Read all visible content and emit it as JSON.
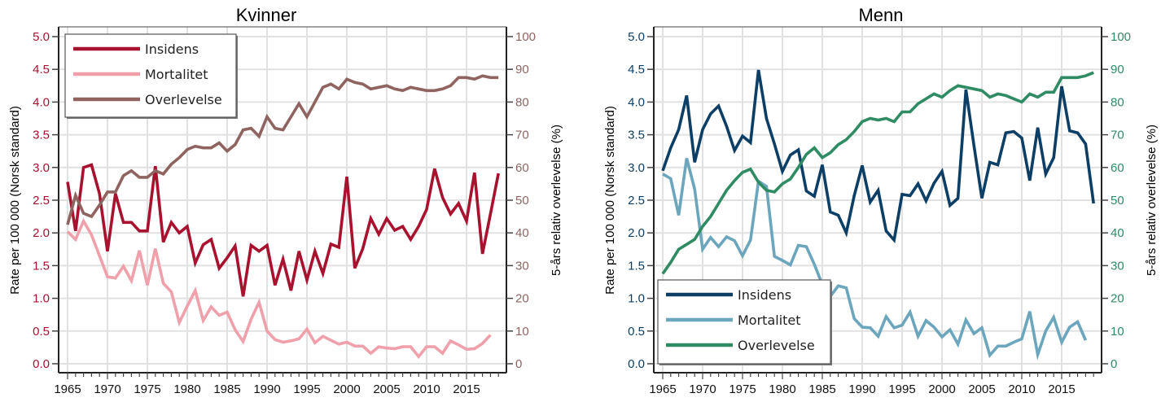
{
  "chart_data": [
    {
      "type": "line",
      "title": "Kvinner",
      "xlabel": "",
      "ylabel": "Rate per 100 000 (Norsk standard)",
      "y2label": "5-års relativ overlevelse (%)",
      "xlim": [
        1965,
        2019
      ],
      "ylim": [
        0,
        5
      ],
      "y2lim": [
        0,
        100
      ],
      "xticks": [
        "1965",
        "1970",
        "1975",
        "1980",
        "1985",
        "1990",
        "1995",
        "2000",
        "2005",
        "2010",
        "2015"
      ],
      "yticks": [
        "0.0",
        "0.5",
        "1.0",
        "1.5",
        "2.0",
        "2.5",
        "3.0",
        "3.5",
        "4.0",
        "4.5",
        "5.0"
      ],
      "y2ticks": [
        "0",
        "10",
        "20",
        "30",
        "40",
        "50",
        "60",
        "70",
        "80",
        "90",
        "100"
      ],
      "grid": true,
      "legend_position": "top-left",
      "axis_color": "#a8122f",
      "axis2_color": "#8f6460",
      "series": [
        {
          "name": "Insidens",
          "axis": "left",
          "color": "#a8122f",
          "x_start": 1965,
          "values": [
            2.78,
            2.03,
            3.0,
            3.04,
            2.6,
            1.72,
            2.6,
            2.16,
            2.16,
            2.03,
            2.03,
            3.02,
            1.86,
            2.16,
            2.0,
            2.1,
            1.54,
            1.82,
            1.9,
            1.46,
            1.62,
            1.8,
            1.03,
            1.81,
            1.72,
            1.81,
            1.2,
            1.6,
            1.12,
            1.72,
            1.28,
            1.72,
            1.38,
            1.83,
            1.78,
            2.86,
            1.46,
            1.76,
            2.22,
            1.98,
            2.22,
            2.04,
            2.1,
            1.9,
            2.1,
            2.36,
            2.98,
            2.54,
            2.29,
            2.45,
            2.18,
            2.92,
            1.68,
            2.29,
            2.91
          ]
        },
        {
          "name": "Mortalitet",
          "axis": "left",
          "color": "#f0a0ab",
          "x_start": 1965,
          "values": [
            2.02,
            1.9,
            2.18,
            1.97,
            1.65,
            1.33,
            1.31,
            1.49,
            1.27,
            1.73,
            1.2,
            1.76,
            1.23,
            1.1,
            0.63,
            0.88,
            1.12,
            0.66,
            0.87,
            0.74,
            0.79,
            0.52,
            0.34,
            0.68,
            0.94,
            0.5,
            0.37,
            0.33,
            0.35,
            0.38,
            0.53,
            0.32,
            0.42,
            0.36,
            0.3,
            0.33,
            0.27,
            0.27,
            0.16,
            0.26,
            0.24,
            0.23,
            0.26,
            0.26,
            0.11,
            0.26,
            0.26,
            0.16,
            0.35,
            0.29,
            0.22,
            0.23,
            0.31,
            0.44
          ]
        },
        {
          "name": "Overlevelse",
          "axis": "right",
          "color": "#8f6460",
          "x_start": 1965,
          "values": [
            42.5,
            51.5,
            46,
            45,
            48.5,
            52.5,
            52.5,
            57.5,
            59,
            57,
            57,
            59,
            58,
            61,
            63,
            65.5,
            66.5,
            66,
            66,
            67.5,
            65,
            67,
            71.5,
            72,
            69.5,
            75.5,
            72,
            71.5,
            75.5,
            79.5,
            75.5,
            80,
            84.5,
            85.5,
            84,
            87,
            86,
            85.5,
            84,
            84.5,
            85,
            84,
            83.5,
            84.5,
            84,
            83.5,
            83.5,
            84,
            85,
            87.5,
            87.5,
            87,
            88,
            87.5,
            87.5
          ]
        }
      ]
    },
    {
      "type": "line",
      "title": "Menn",
      "xlabel": "",
      "ylabel": "Rate per 100 000 (Norsk standard)",
      "y2label": "5-års relativ overlevelse (%)",
      "xlim": [
        1965,
        2019
      ],
      "ylim": [
        0,
        5
      ],
      "y2lim": [
        0,
        100
      ],
      "xticks": [
        "1965",
        "1970",
        "1975",
        "1980",
        "1985",
        "1990",
        "1995",
        "2000",
        "2005",
        "2010",
        "2015"
      ],
      "yticks": [
        "0.0",
        "0.5",
        "1.0",
        "1.5",
        "2.0",
        "2.5",
        "3.0",
        "3.5",
        "4.0",
        "4.5",
        "5.0"
      ],
      "y2ticks": [
        "0",
        "10",
        "20",
        "30",
        "40",
        "50",
        "60",
        "70",
        "80",
        "90",
        "100"
      ],
      "grid": true,
      "legend_position": "bottom-left",
      "axis_color": "#0d3f66",
      "axis2_color": "#2e8b63",
      "series": [
        {
          "name": "Insidens",
          "axis": "left",
          "color": "#0d3f66",
          "x_start": 1965,
          "values": [
            2.95,
            3.3,
            3.58,
            4.1,
            3.08,
            3.58,
            3.82,
            3.94,
            3.63,
            3.26,
            3.48,
            3.38,
            4.49,
            3.75,
            3.36,
            2.94,
            3.19,
            3.27,
            2.64,
            2.56,
            3.04,
            2.32,
            2.27,
            2.0,
            2.57,
            3.03,
            2.47,
            2.65,
            2.03,
            1.89,
            2.59,
            2.57,
            2.75,
            2.49,
            2.76,
            2.94,
            2.42,
            2.53,
            4.19,
            3.34,
            2.53,
            3.08,
            3.04,
            3.53,
            3.55,
            3.45,
            2.8,
            3.61,
            2.9,
            3.15,
            4.24,
            3.56,
            3.53,
            3.36,
            2.45
          ]
        },
        {
          "name": "Mortalitet",
          "axis": "left",
          "color": "#6ba6bd",
          "x_start": 1965,
          "values": [
            2.9,
            2.83,
            2.27,
            3.14,
            2.67,
            1.75,
            1.93,
            1.79,
            1.94,
            1.88,
            1.65,
            1.89,
            2.79,
            2.71,
            1.64,
            1.58,
            1.51,
            1.81,
            1.79,
            1.52,
            1.21,
            1.03,
            1.19,
            1.16,
            0.69,
            0.56,
            0.55,
            0.42,
            0.72,
            0.55,
            0.59,
            0.79,
            0.42,
            0.66,
            0.56,
            0.41,
            0.52,
            0.3,
            0.67,
            0.46,
            0.55,
            0.13,
            0.27,
            0.27,
            0.33,
            0.38,
            0.8,
            0.14,
            0.5,
            0.71,
            0.33,
            0.56,
            0.64,
            0.36
          ]
        },
        {
          "name": "Overlevelse",
          "axis": "right",
          "color": "#2e8b63",
          "x_start": 1965,
          "values": [
            27.5,
            31,
            35,
            36.5,
            38,
            42,
            45,
            49,
            53,
            56,
            58.5,
            59.5,
            55.5,
            53,
            52.5,
            55,
            56.5,
            60,
            64,
            66,
            63,
            64.5,
            67,
            68.5,
            71,
            74,
            75,
            74.5,
            75,
            74,
            77,
            77,
            79.5,
            81,
            82.5,
            81.5,
            83.5,
            85,
            84.5,
            84,
            83.5,
            81.5,
            82.5,
            82,
            81,
            80,
            82.5,
            81.5,
            83,
            83,
            87.5,
            87.5,
            87.5,
            88,
            89
          ]
        }
      ]
    }
  ]
}
